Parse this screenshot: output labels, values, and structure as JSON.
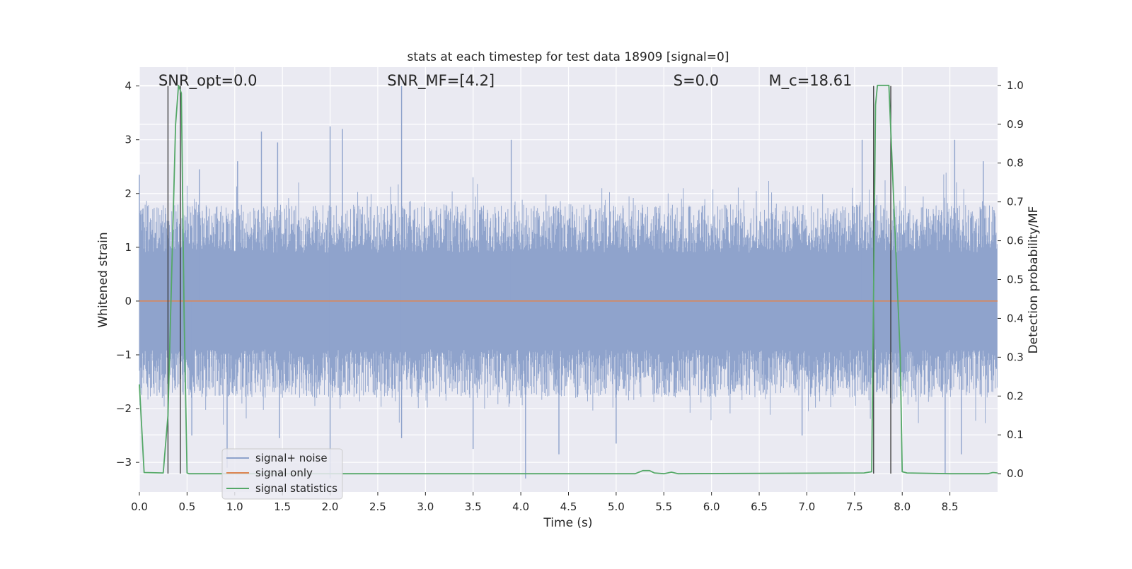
{
  "chart_data": {
    "type": "line",
    "title": "stats at each timestep for test data 18909 [signal=0]",
    "xlabel": "Time (s)",
    "ylabel": "Whitened strain",
    "y2label": "Detection probability/MF",
    "xlim": [
      0.0,
      9.0
    ],
    "ylim": [
      -3.55,
      4.35
    ],
    "y2lim": [
      -0.047,
      1.047
    ],
    "x_ticks": [
      "0.0",
      "0.5",
      "1.0",
      "1.5",
      "2.0",
      "2.5",
      "3.0",
      "3.5",
      "4.0",
      "4.5",
      "5.0",
      "5.5",
      "6.0",
      "6.5",
      "7.0",
      "7.5",
      "8.0",
      "8.5"
    ],
    "x_tick_values": [
      0,
      0.5,
      1,
      1.5,
      2,
      2.5,
      3,
      3.5,
      4,
      4.5,
      5,
      5.5,
      6,
      6.5,
      7,
      7.5,
      8,
      8.5
    ],
    "y_ticks": [
      "−3",
      "−2",
      "−1",
      "0",
      "1",
      "2",
      "3",
      "4"
    ],
    "y_tick_values": [
      -3,
      -2,
      -1,
      0,
      1,
      2,
      3,
      4
    ],
    "y2_ticks": [
      "0.0",
      "0.1",
      "0.2",
      "0.3",
      "0.4",
      "0.5",
      "0.6",
      "0.7",
      "0.8",
      "0.9",
      "1.0"
    ],
    "y2_tick_values": [
      0,
      0.1,
      0.2,
      0.3,
      0.4,
      0.5,
      0.6,
      0.7,
      0.8,
      0.9,
      1.0
    ],
    "annotations": [
      {
        "text": "SNR_opt=0.0",
        "x": 0.2
      },
      {
        "text": "SNR_MF=[4.2]",
        "x": 2.6
      },
      {
        "text": "S=0.0",
        "x": 5.6
      },
      {
        "text": "M_c=18.61",
        "x": 6.6
      }
    ],
    "series": [
      {
        "name": "signal+ noise",
        "color": "#8fa3cc",
        "axis": "left",
        "kind": "noise",
        "envelope_typical": 1.8,
        "peak_points": [
          [
            0.0,
            2.35
          ],
          [
            0.63,
            2.45
          ],
          [
            1.03,
            2.6
          ],
          [
            1.28,
            3.15
          ],
          [
            1.45,
            2.95
          ],
          [
            2.0,
            3.25
          ],
          [
            2.13,
            3.2
          ],
          [
            2.75,
            4.0
          ],
          [
            3.9,
            3.0
          ],
          [
            7.58,
            3.0
          ],
          [
            8.55,
            3.0
          ],
          [
            8.85,
            2.6
          ]
        ],
        "trough_points": [
          [
            0.55,
            -2.5
          ],
          [
            0.92,
            -3.1
          ],
          [
            1.47,
            -2.55
          ],
          [
            2.0,
            -3.3
          ],
          [
            2.75,
            -2.55
          ],
          [
            3.5,
            -2.75
          ],
          [
            4.05,
            -3.3
          ],
          [
            4.4,
            -2.85
          ],
          [
            5.0,
            -2.65
          ],
          [
            6.95,
            -2.5
          ],
          [
            8.45,
            -3.2
          ],
          [
            8.62,
            -2.85
          ]
        ]
      },
      {
        "name": "signal only",
        "color": "#dd8452",
        "axis": "left",
        "x": [
          0.0,
          9.0
        ],
        "y": [
          0.0,
          0.0
        ]
      },
      {
        "name": "signal statistics",
        "color": "#55a868",
        "axis": "right",
        "x": [
          0.0,
          0.05,
          0.25,
          0.3,
          0.38,
          0.41,
          0.44,
          0.47,
          0.5,
          0.52,
          5.2,
          5.28,
          5.35,
          5.4,
          5.5,
          5.58,
          5.65,
          7.6,
          7.68,
          7.72,
          7.74,
          7.86,
          7.92,
          7.98,
          8.0,
          8.05,
          8.5,
          8.9,
          8.95,
          9.0
        ],
        "y": [
          0.23,
          0.003,
          0.002,
          0.15,
          0.9,
          1.0,
          0.98,
          0.4,
          0.002,
          0.0,
          0.0,
          0.008,
          0.008,
          0.002,
          0.0,
          0.004,
          0.0,
          0.002,
          0.005,
          0.95,
          1.0,
          1.0,
          0.65,
          0.3,
          0.005,
          0.002,
          0.0,
          0.0,
          0.003,
          0.002
        ]
      }
    ],
    "vertical_markers": [
      0.3,
      0.43,
      7.7,
      7.88
    ],
    "legend": {
      "placement": "lower-left",
      "entries": [
        "signal+ noise",
        "signal only",
        "signal statistics"
      ]
    },
    "grid": true
  }
}
